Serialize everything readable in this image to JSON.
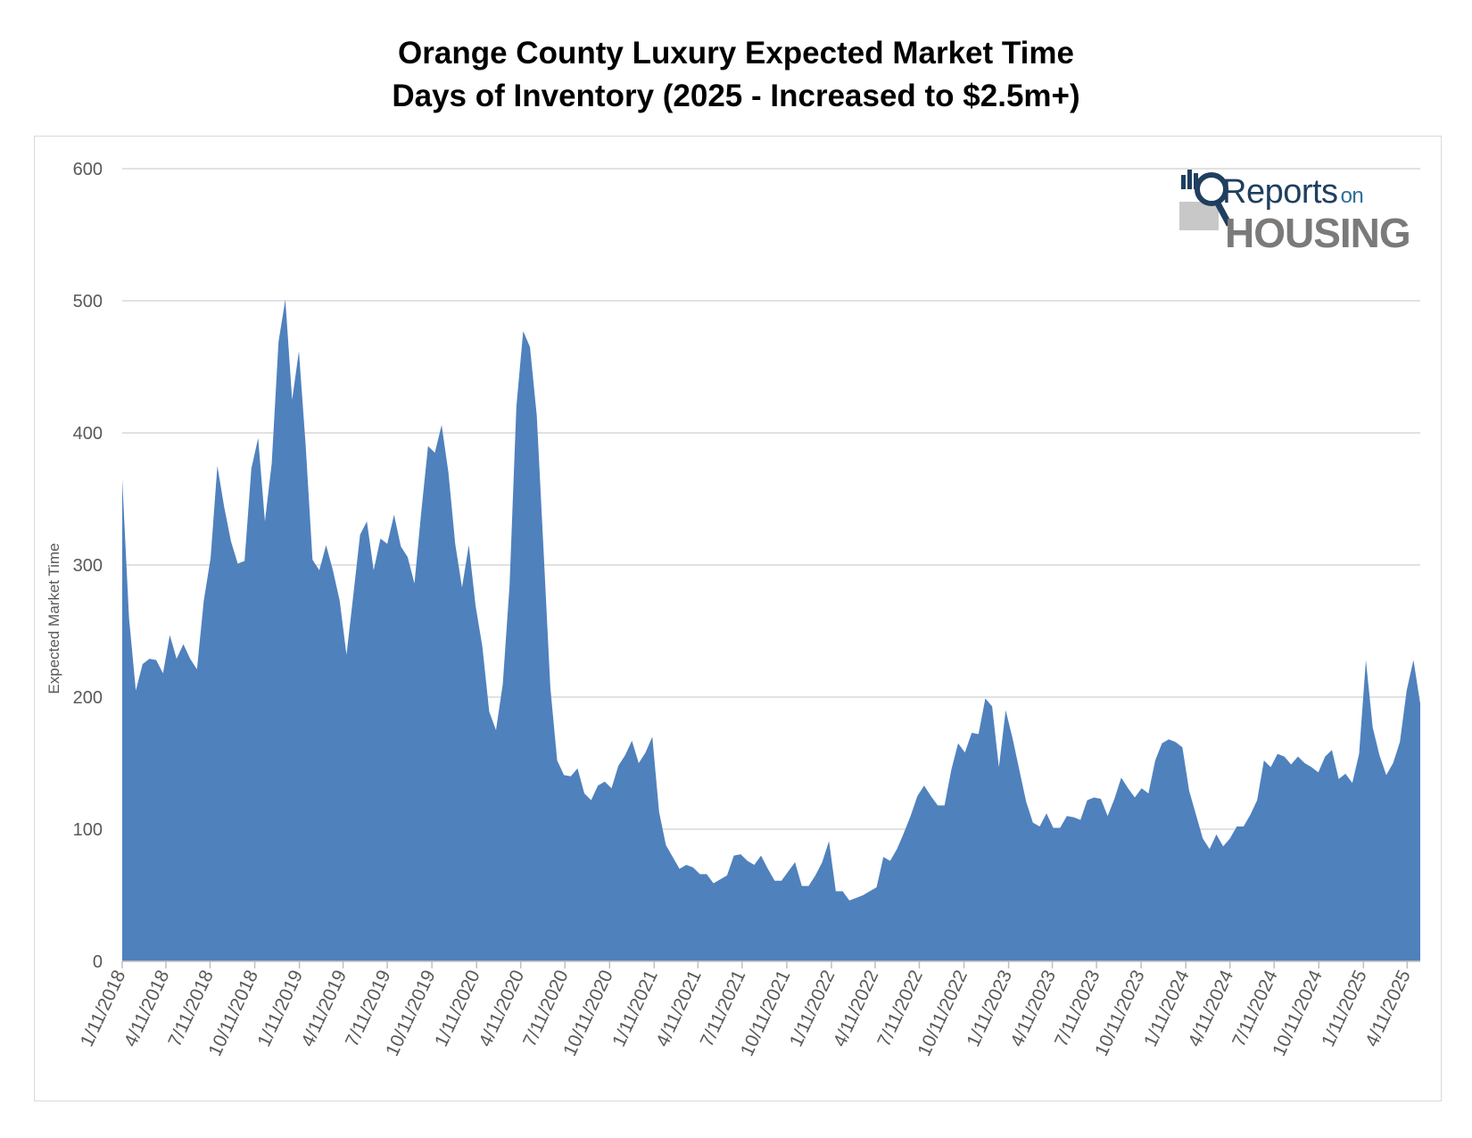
{
  "header": {
    "title_line1": "Orange County Luxury Expected Market Time",
    "title_line2": "Days of Inventory  (2025 - Increased to $2.5m+)"
  },
  "logo": {
    "word1": "Reports",
    "word2": "on",
    "word3": "HOUSING",
    "icon": "bar-chart-magnifier-icon"
  },
  "colors": {
    "area_fill": "#4f81bd",
    "gridline": "#d9d9d9",
    "axis_text": "#595959"
  },
  "chart_data": {
    "type": "area",
    "title": "Orange County Luxury Expected Market Time",
    "subtitle": "Days of Inventory  (2025 - Increased to $2.5m+)",
    "xlabel": "",
    "ylabel": "Expected Market Time",
    "ylim": [
      0,
      600
    ],
    "yticks": [
      0,
      100,
      200,
      300,
      400,
      500,
      600
    ],
    "grid": true,
    "legend": "none",
    "xtick_labels": [
      "1/11/2018",
      "4/11/2018",
      "7/11/2018",
      "10/11/2018",
      "1/11/2019",
      "4/11/2019",
      "7/11/2019",
      "10/11/2019",
      "1/11/2020",
      "4/11/2020",
      "7/11/2020",
      "10/11/2020",
      "1/11/2021",
      "4/11/2021",
      "7/11/2021",
      "10/11/2021",
      "1/11/2022",
      "4/11/2022",
      "7/11/2022",
      "10/11/2022",
      "1/11/2023",
      "4/11/2023",
      "7/11/2023",
      "10/11/2023",
      "1/11/2024",
      "4/11/2024",
      "7/11/2024",
      "10/11/2024",
      "1/11/2025",
      "4/11/2025"
    ],
    "x_start": "2018-01-11",
    "x_step_days": 14,
    "values": [
      365,
      260,
      205,
      225,
      229,
      228,
      218,
      247,
      229,
      240,
      229,
      221,
      273,
      305,
      375,
      344,
      318,
      301,
      303,
      373,
      396,
      333,
      377,
      469,
      501,
      425,
      462,
      390,
      304,
      296,
      315,
      296,
      273,
      232,
      277,
      323,
      333,
      296,
      320,
      316,
      338,
      314,
      306,
      286,
      340,
      390,
      385,
      406,
      370,
      316,
      283,
      315,
      269,
      238,
      189,
      175,
      210,
      285,
      420,
      477,
      465,
      413,
      311,
      207,
      152,
      141,
      140,
      146,
      127,
      122,
      133,
      136,
      131,
      148,
      156,
      167,
      150,
      158,
      170,
      113,
      88,
      79,
      70,
      73,
      71,
      66,
      66,
      59,
      62,
      65,
      80,
      81,
      76,
      73,
      80,
      70,
      61,
      61,
      68,
      75,
      57,
      57,
      65,
      75,
      91,
      53,
      53,
      46,
      48,
      50,
      53,
      56,
      79,
      76,
      85,
      97,
      110,
      125,
      133,
      125,
      118,
      118,
      145,
      165,
      158,
      173,
      172,
      199,
      193,
      147,
      190,
      169,
      145,
      121,
      105,
      102,
      112,
      101,
      101,
      110,
      109,
      107,
      122,
      124,
      123,
      110,
      123,
      139,
      131,
      124,
      131,
      127,
      152,
      165,
      168,
      166,
      162,
      129,
      111,
      93,
      85,
      96,
      87,
      93,
      102,
      102,
      111,
      122,
      152,
      147,
      157,
      155,
      149,
      155,
      150,
      147,
      143,
      155,
      160,
      138,
      142,
      135,
      157,
      228,
      177,
      156,
      141,
      150,
      166,
      205,
      228,
      195
    ]
  }
}
